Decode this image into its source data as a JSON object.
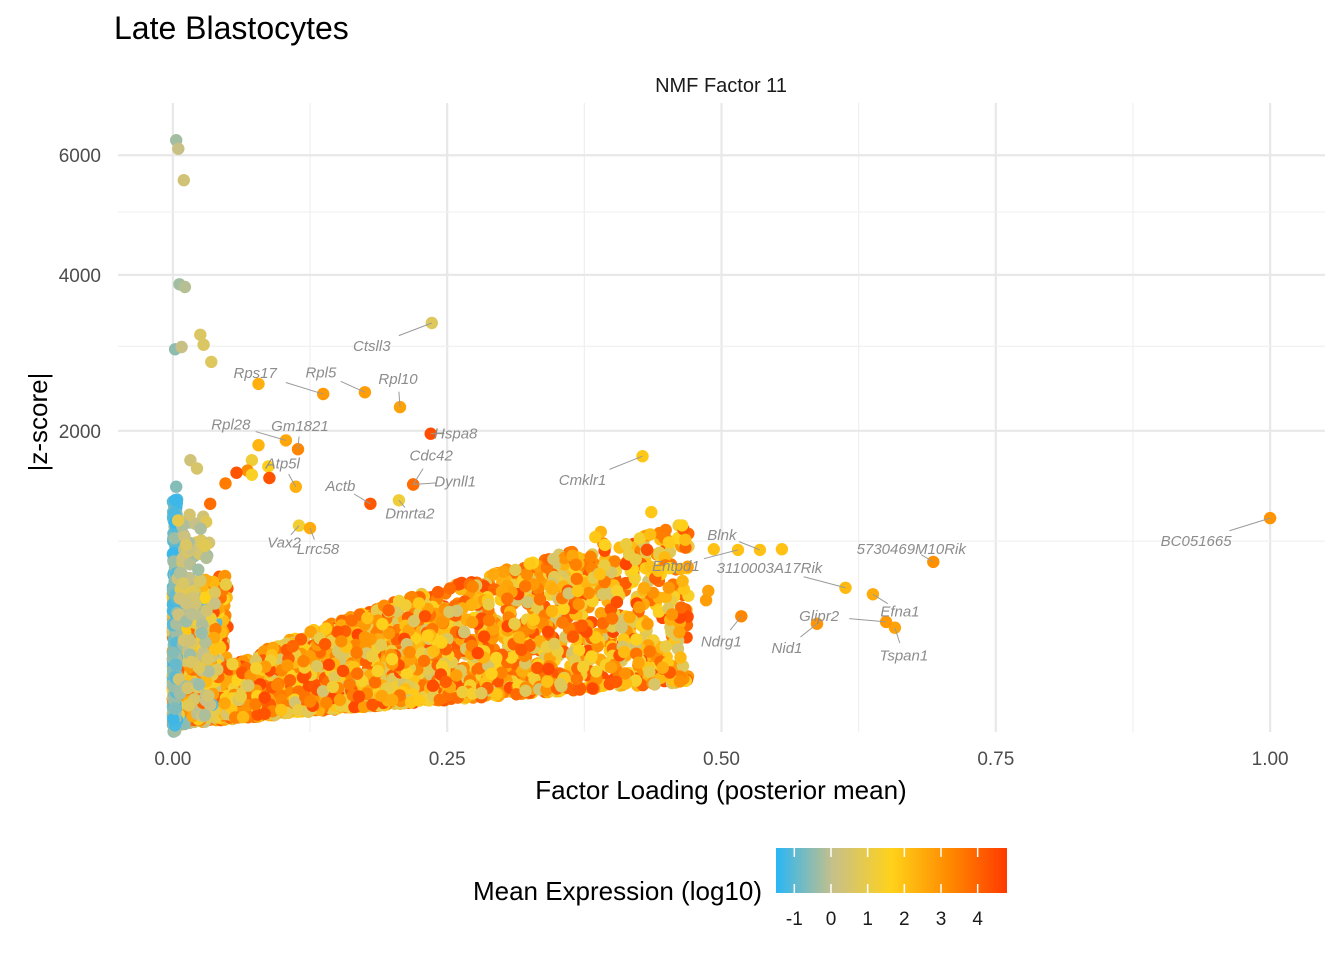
{
  "chart_data": {
    "type": "scatter",
    "title": "Late Blastocytes",
    "facet_label": "NMF Factor 11",
    "xlabel": "Factor Loading (posterior mean)",
    "ylabel": "|z-score|",
    "x_ticks": [
      "0.00",
      "0.25",
      "0.50",
      "0.75",
      "1.00"
    ],
    "y_ticks": [
      "2000",
      "4000",
      "6000"
    ],
    "xlim": [
      -0.05,
      1.05
    ],
    "y_scale": "sqrt",
    "y_tick_values": [
      2000,
      4000,
      6000
    ],
    "ylim": [
      80,
      7000
    ],
    "grid": true,
    "legend": {
      "title": "Mean Expression (log10)",
      "position": "bottom",
      "ticks": [
        "-1",
        "0",
        "1",
        "2",
        "3",
        "4"
      ],
      "range": [
        -1.5,
        4.8
      ],
      "colors": [
        "#29b6f6",
        "#c8c088",
        "#ffd21a",
        "#ff8a00",
        "#ff3a00"
      ]
    },
    "labeled_points": [
      {
        "gene": "BC051665",
        "x": 1.0,
        "y": 1180,
        "expr": 3.0
      },
      {
        "gene": "5730469M10Rik",
        "x": 0.693,
        "y": 850,
        "expr": 3.1
      },
      {
        "gene": "3110003A17Rik",
        "x": 0.613,
        "y": 680,
        "expr": 2.2
      },
      {
        "gene": "Efna1",
        "x": 0.638,
        "y": 640,
        "expr": 2.5
      },
      {
        "gene": "Tspan1",
        "x": 0.658,
        "y": 455,
        "expr": 2.7
      },
      {
        "gene": "Glipr2",
        "x": 0.65,
        "y": 485,
        "expr": 2.9
      },
      {
        "gene": "Nid1",
        "x": 0.587,
        "y": 475,
        "expr": 3.0
      },
      {
        "gene": "Ndrg1",
        "x": 0.518,
        "y": 515,
        "expr": 3.3
      },
      {
        "gene": "Blnk",
        "x": 0.535,
        "y": 935,
        "expr": 2.0
      },
      {
        "gene": "Entpd1",
        "x": 0.515,
        "y": 935,
        "expr": 2.0
      },
      {
        "gene": "Cmklr1",
        "x": 0.428,
        "y": 1740,
        "expr": 1.9
      },
      {
        "gene": "Ctsll3",
        "x": 0.236,
        "y": 3310,
        "expr": 0.7
      },
      {
        "gene": "Rpl10",
        "x": 0.207,
        "y": 2260,
        "expr": 2.7
      },
      {
        "gene": "Hspa8",
        "x": 0.235,
        "y": 1970,
        "expr": 4.4
      },
      {
        "gene": "Rpl5",
        "x": 0.175,
        "y": 2430,
        "expr": 2.8
      },
      {
        "gene": "Rps17",
        "x": 0.137,
        "y": 2410,
        "expr": 2.9
      },
      {
        "gene": "Gm1821",
        "x": 0.114,
        "y": 1810,
        "expr": 3.3
      },
      {
        "gene": "Rpl28",
        "x": 0.103,
        "y": 1900,
        "expr": 2.6
      },
      {
        "gene": "Atp5l",
        "x": 0.112,
        "y": 1450,
        "expr": 2.4
      },
      {
        "gene": "Cdc42",
        "x": 0.219,
        "y": 1470,
        "expr": 3.8
      },
      {
        "gene": "Dynll1",
        "x": 0.219,
        "y": 1470,
        "expr": 3.8
      },
      {
        "gene": "Actb",
        "x": 0.18,
        "y": 1300,
        "expr": 4.2
      },
      {
        "gene": "Dmrta2",
        "x": 0.206,
        "y": 1330,
        "expr": 1.2
      },
      {
        "gene": "Vax2",
        "x": 0.115,
        "y": 1120,
        "expr": 1.3
      },
      {
        "gene": "Lrrc58",
        "x": 0.125,
        "y": 1100,
        "expr": 2.5
      }
    ],
    "highlighted_points": [
      {
        "x": 0.003,
        "y": 6280,
        "expr": -0.3
      },
      {
        "x": 0.005,
        "y": 6120,
        "expr": 0.1
      },
      {
        "x": 0.01,
        "y": 5550,
        "expr": 0.3
      },
      {
        "x": 0.006,
        "y": 3860,
        "expr": -0.3
      },
      {
        "x": 0.011,
        "y": 3820,
        "expr": -0.1
      },
      {
        "x": 0.002,
        "y": 2960,
        "expr": -0.5
      },
      {
        "x": 0.008,
        "y": 2990,
        "expr": 0.1
      },
      {
        "x": 0.025,
        "y": 3150,
        "expr": 0.6
      },
      {
        "x": 0.028,
        "y": 3020,
        "expr": 0.6
      },
      {
        "x": 0.035,
        "y": 2800,
        "expr": 0.7
      },
      {
        "x": 0.016,
        "y": 1700,
        "expr": 0.3
      },
      {
        "x": 0.022,
        "y": 1620,
        "expr": 0.5
      },
      {
        "x": 0.003,
        "y": 1450,
        "expr": -0.6
      },
      {
        "x": 0.002,
        "y": 1330,
        "expr": -1.3
      },
      {
        "x": 0.078,
        "y": 2530,
        "expr": 2.4
      },
      {
        "x": 0.078,
        "y": 1850,
        "expr": 2.3
      },
      {
        "x": 0.072,
        "y": 1700,
        "expr": 1.2
      },
      {
        "x": 0.087,
        "y": 1640,
        "expr": 1.7
      },
      {
        "x": 0.068,
        "y": 1600,
        "expr": 3.2
      },
      {
        "x": 0.058,
        "y": 1580,
        "expr": 4.3
      },
      {
        "x": 0.072,
        "y": 1560,
        "expr": 1.5
      },
      {
        "x": 0.088,
        "y": 1530,
        "expr": 4.3
      },
      {
        "x": 0.048,
        "y": 1480,
        "expr": 3.5
      },
      {
        "x": 0.034,
        "y": 1300,
        "expr": 3.8
      },
      {
        "x": 0.436,
        "y": 1230,
        "expr": 1.9
      },
      {
        "x": 0.435,
        "y": 1050,
        "expr": 2.1
      },
      {
        "x": 0.452,
        "y": 990,
        "expr": 1.8
      },
      {
        "x": 0.493,
        "y": 940,
        "expr": 2.0
      },
      {
        "x": 0.467,
        "y": 1010,
        "expr": 2.1
      },
      {
        "x": 0.555,
        "y": 940,
        "expr": 2.0
      },
      {
        "x": 0.39,
        "y": 1070,
        "expr": 2.3
      },
      {
        "x": 0.385,
        "y": 1030,
        "expr": 1.9
      },
      {
        "x": 0.452,
        "y": 680,
        "expr": 2.9
      },
      {
        "x": 0.488,
        "y": 660,
        "expr": 2.7
      },
      {
        "x": 0.486,
        "y": 605,
        "expr": 2.8
      },
      {
        "x": 0.455,
        "y": 525,
        "expr": 3.0
      },
      {
        "x": 0.425,
        "y": 565,
        "expr": 2.9
      }
    ],
    "cloud": {
      "n": 3200,
      "x_max": 0.47,
      "expr_range": [
        0.4,
        4.6
      ]
    }
  }
}
